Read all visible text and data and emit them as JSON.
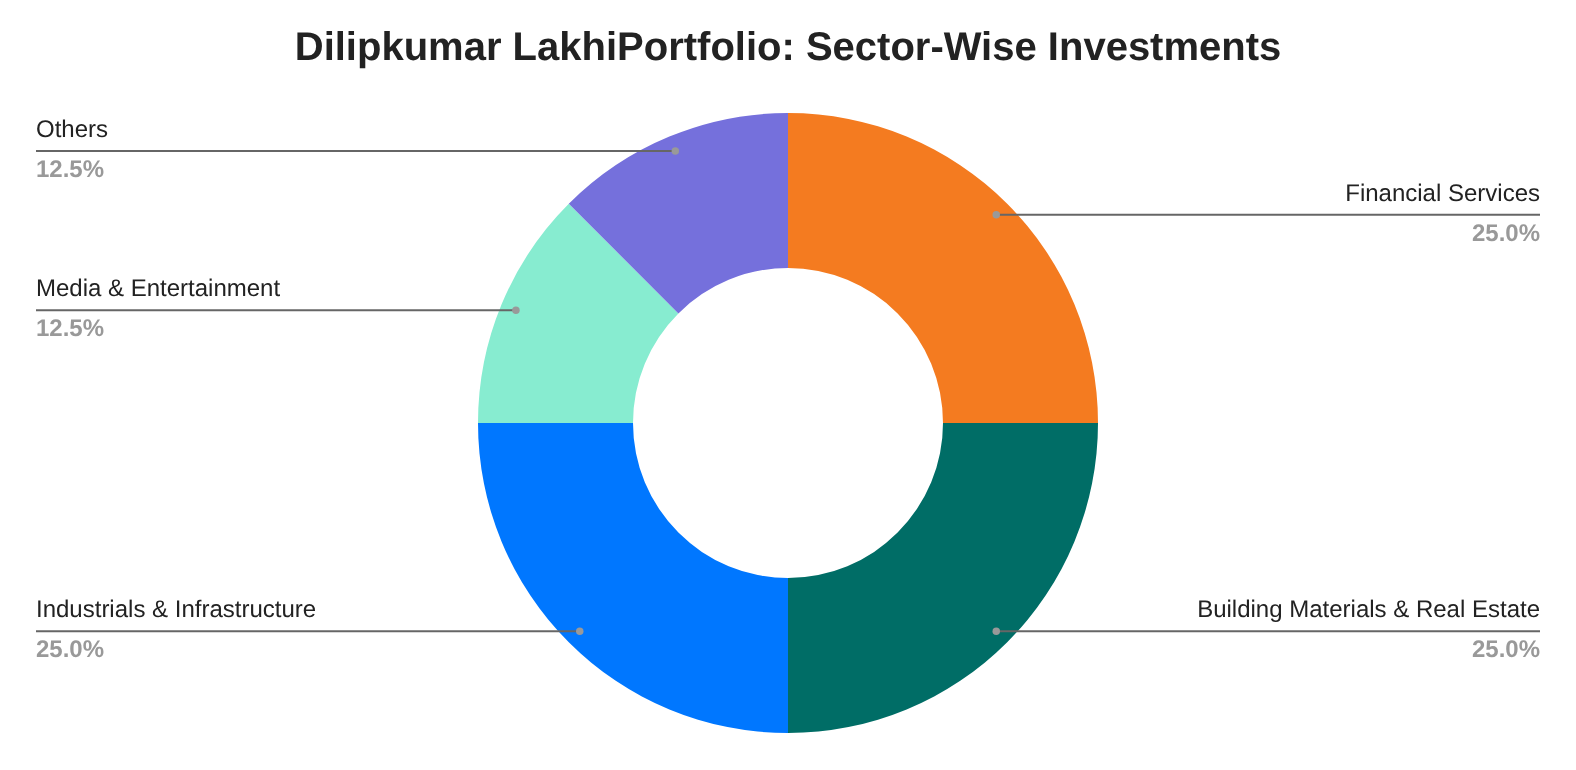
{
  "chart_data": {
    "type": "donut",
    "title": "Dilipkumar LakhiPortfolio: Sector-Wise Investments",
    "categories": [
      "Financial Services",
      "Building Materials & Real Estate",
      "Industrials & Infrastructure",
      "Media & Entertainment",
      "Others"
    ],
    "values": [
      25,
      25,
      25,
      12.5,
      12.5
    ],
    "colors": [
      "#f47b20",
      "#006d66",
      "#0077ff",
      "#87ecd0",
      "#7570dc"
    ],
    "value_labels": [
      "25.0%",
      "25.0%",
      "25.0%",
      "12.5%",
      "12.5%"
    ]
  }
}
